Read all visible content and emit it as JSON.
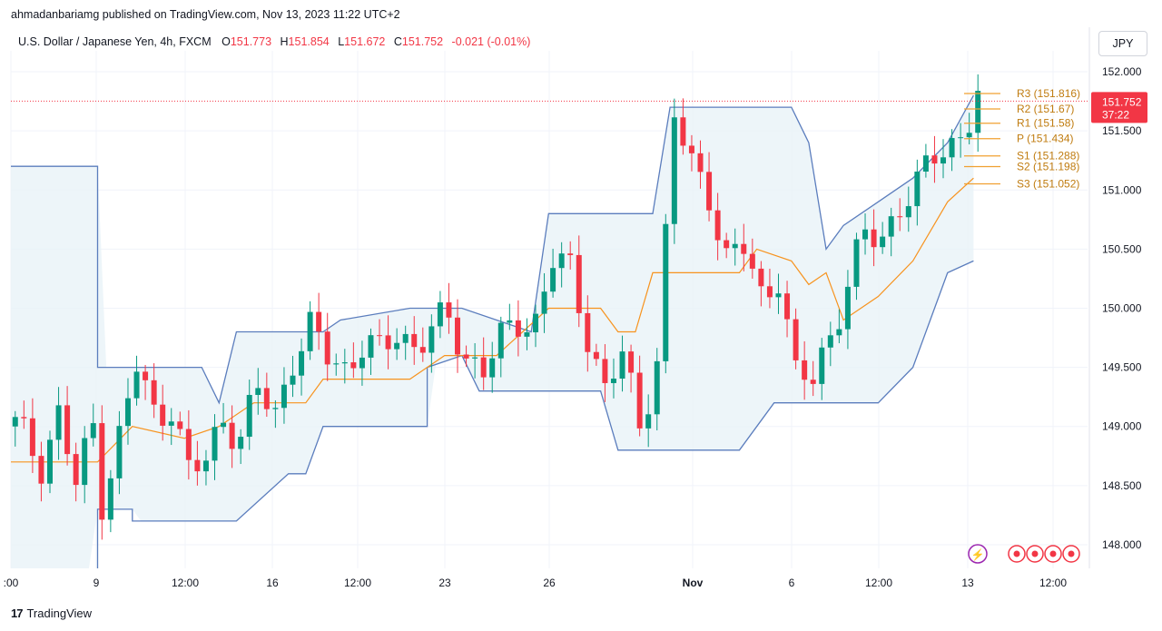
{
  "publisher": "ahmadanbariamg published on TradingView.com, Nov 13, 2023 11:22 UTC+2",
  "legend": {
    "symbol": "U.S. Dollar / Japanese Yen, 4h, FXCM",
    "o_key": "O",
    "o_val": "151.773",
    "h_key": "H",
    "h_val": "151.854",
    "l_key": "L",
    "l_val": "151.672",
    "c_key": "C",
    "c_val": "151.752",
    "change": "-0.021 (-0.01%)"
  },
  "currency_button": "JPY",
  "footer": {
    "brand": "TradingView",
    "logo": "17"
  },
  "colors": {
    "up": "#089981",
    "down": "#f23645",
    "channel": "#5b7dbd",
    "channel_fill": "#e9f3f8",
    "midline": "#f7931e",
    "pivot": "#f0a030"
  },
  "chart_data": {
    "type": "candlestick",
    "title": "",
    "y_ticks": [
      "152.000",
      "151.500",
      "151.000",
      "150.500",
      "150.000",
      "149.500",
      "149.000",
      "148.500",
      "148.000"
    ],
    "x_ticks": [
      ":00",
      "9",
      "12:00",
      "16",
      "12:00",
      "23",
      "26",
      "Nov",
      "6",
      "12:00",
      "13",
      "12:00"
    ],
    "current_price": "151.752",
    "countdown": "37:22",
    "pivots": [
      {
        "label": "R3 (151.816)",
        "value": 151.816
      },
      {
        "label": "R2 (151.67)",
        "value": 151.67
      },
      {
        "label": "R1 (151.58)",
        "value": 151.58
      },
      {
        "label": "P (151.434)",
        "value": 151.434
      },
      {
        "label": "S1 (151.288)",
        "value": 151.288
      },
      {
        "label": "S2 (151.198)",
        "value": 151.198
      },
      {
        "label": "S3 (151.052)",
        "value": 151.052
      }
    ],
    "price_path": [
      [
        0,
        149.0
      ],
      [
        3,
        148.7
      ],
      [
        5,
        149.1
      ],
      [
        7,
        148.5
      ],
      [
        9,
        149.0
      ],
      [
        10,
        148.4
      ],
      [
        12,
        148.9
      ],
      [
        14,
        149.5
      ],
      [
        16,
        149.1
      ],
      [
        18,
        149.2
      ],
      [
        20,
        148.6
      ],
      [
        22,
        148.7
      ],
      [
        24,
        149.1
      ],
      [
        26,
        148.9
      ],
      [
        28,
        149.3
      ],
      [
        30,
        149.1
      ],
      [
        32,
        149.6
      ],
      [
        34,
        149.8
      ],
      [
        36,
        149.6
      ],
      [
        38,
        149.5
      ],
      [
        40,
        149.7
      ],
      [
        42,
        149.6
      ],
      [
        44,
        149.8
      ],
      [
        46,
        149.7
      ],
      [
        48,
        149.8
      ],
      [
        50,
        149.9
      ],
      [
        52,
        149.6
      ],
      [
        54,
        149.5
      ],
      [
        56,
        149.7
      ],
      [
        58,
        149.9
      ],
      [
        60,
        149.9
      ],
      [
        62,
        150.4
      ],
      [
        64,
        150.3
      ],
      [
        66,
        149.8
      ],
      [
        68,
        149.3
      ],
      [
        70,
        149.6
      ],
      [
        72,
        149.0
      ],
      [
        74,
        149.6
      ],
      [
        76,
        151.6
      ],
      [
        78,
        151.2
      ],
      [
        80,
        151.0
      ],
      [
        82,
        150.4
      ],
      [
        84,
        150.5
      ],
      [
        86,
        150.1
      ],
      [
        88,
        150.3
      ],
      [
        90,
        149.4
      ],
      [
        92,
        149.4
      ],
      [
        94,
        149.8
      ],
      [
        96,
        150.2
      ],
      [
        98,
        150.6
      ],
      [
        100,
        150.6
      ],
      [
        102,
        150.9
      ],
      [
        104,
        151.0
      ],
      [
        106,
        151.3
      ],
      [
        108,
        151.4
      ],
      [
        110,
        151.6
      ],
      [
        111,
        151.75
      ]
    ],
    "channel_upper": [
      [
        0,
        151.2
      ],
      [
        10,
        151.2
      ],
      [
        10,
        149.5
      ],
      [
        22,
        149.5
      ],
      [
        24,
        149.2
      ],
      [
        26,
        149.8
      ],
      [
        36,
        149.8
      ],
      [
        38,
        149.9
      ],
      [
        46,
        150.0
      ],
      [
        52,
        150.0
      ],
      [
        60,
        149.8
      ],
      [
        62,
        150.8
      ],
      [
        74,
        150.8
      ],
      [
        76,
        151.7
      ],
      [
        90,
        151.7
      ],
      [
        92,
        151.4
      ],
      [
        94,
        150.5
      ],
      [
        96,
        150.7
      ],
      [
        100,
        150.9
      ],
      [
        104,
        151.1
      ],
      [
        108,
        151.4
      ],
      [
        111,
        151.8
      ]
    ],
    "channel_lower": [
      [
        10,
        147.8
      ],
      [
        10,
        148.3
      ],
      [
        14,
        148.3
      ],
      [
        14,
        148.2
      ],
      [
        26,
        148.2
      ],
      [
        32,
        148.6
      ],
      [
        34,
        148.6
      ],
      [
        36,
        149.0
      ],
      [
        48,
        149.0
      ],
      [
        48,
        149.5
      ],
      [
        52,
        149.6
      ],
      [
        54,
        149.3
      ],
      [
        68,
        149.3
      ],
      [
        70,
        148.8
      ],
      [
        84,
        148.8
      ],
      [
        88,
        149.2
      ],
      [
        100,
        149.2
      ],
      [
        104,
        149.5
      ],
      [
        106,
        149.9
      ],
      [
        108,
        150.3
      ],
      [
        111,
        150.4
      ]
    ],
    "midline": [
      [
        0,
        148.7
      ],
      [
        10,
        148.7
      ],
      [
        14,
        149.0
      ],
      [
        20,
        148.9
      ],
      [
        24,
        149.0
      ],
      [
        28,
        149.2
      ],
      [
        34,
        149.2
      ],
      [
        36,
        149.4
      ],
      [
        46,
        149.4
      ],
      [
        50,
        149.6
      ],
      [
        56,
        149.6
      ],
      [
        62,
        150.0
      ],
      [
        68,
        150.0
      ],
      [
        70,
        149.8
      ],
      [
        72,
        149.8
      ],
      [
        74,
        150.3
      ],
      [
        84,
        150.3
      ],
      [
        86,
        150.5
      ],
      [
        90,
        150.4
      ],
      [
        92,
        150.2
      ],
      [
        94,
        150.3
      ],
      [
        96,
        149.9
      ],
      [
        100,
        150.1
      ],
      [
        104,
        150.4
      ],
      [
        108,
        150.9
      ],
      [
        111,
        151.1
      ]
    ],
    "y_range": [
      147.8,
      152.1
    ]
  }
}
